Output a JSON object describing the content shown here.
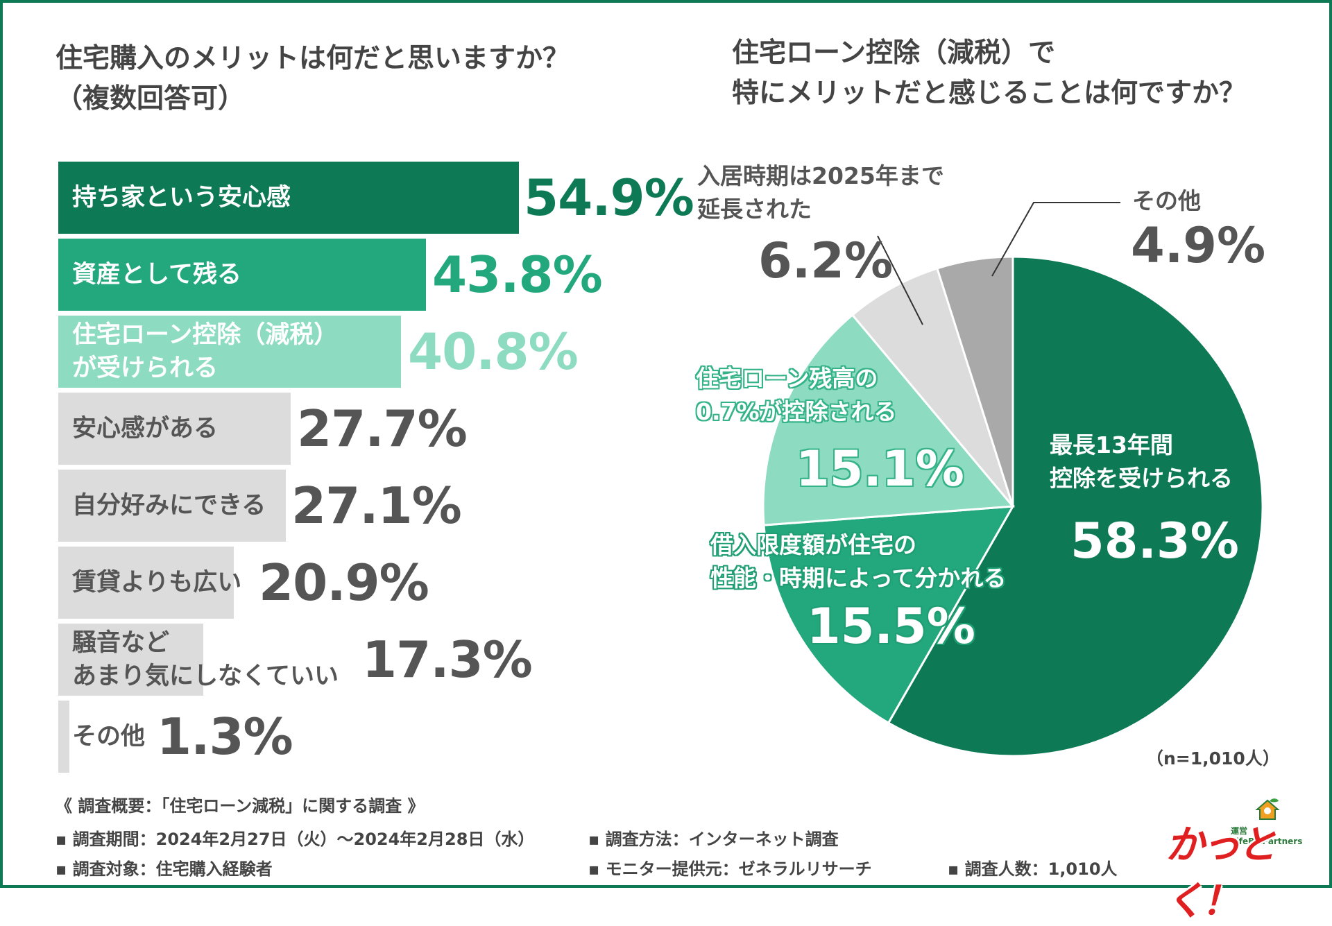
{
  "left_title": [
    "住宅購入のメリットは何だと思いますか？",
    "（複数回答可）"
  ],
  "right_title": [
    "住宅ローン控除（減税）で",
    "特にメリットだと感じることは何ですか？"
  ],
  "chart_data": [
    {
      "type": "bar",
      "orientation": "horizontal",
      "title": "住宅購入のメリットは何だと思いますか？（複数回答可）",
      "unit": "%",
      "categories": [
        [
          "持ち家という安心感"
        ],
        [
          "資産として残る"
        ],
        [
          "住宅ローン控除（減税）",
          "が受けられる"
        ],
        [
          "安心感がある"
        ],
        [
          "自分好みにできる"
        ],
        [
          "賃貸よりも広い"
        ],
        [
          "騒音など",
          "あまり気にしなくていい"
        ],
        [
          "その他"
        ]
      ],
      "values": [
        54.9,
        43.8,
        40.8,
        27.7,
        27.1,
        20.9,
        17.3,
        1.3
      ],
      "value_labels": [
        "54.9%",
        "43.8%",
        "40.8%",
        "27.7%",
        "27.1%",
        "20.9%",
        "17.3%",
        "1.3%"
      ]
    },
    {
      "type": "pie",
      "title": "住宅ローン控除（減税）で特にメリットだと感じることは何ですか？",
      "unit": "%",
      "slices": [
        {
          "label": [
            "最長13年間",
            "控除を受けられる"
          ],
          "value": 58.3,
          "value_label": "58.3%"
        },
        {
          "label": [
            "借入限度額が住宅の",
            "性能・時期によって分かれる"
          ],
          "value": 15.5,
          "value_label": "15.5%"
        },
        {
          "label": [
            "住宅ローン残高の",
            "0.7%が控除される"
          ],
          "value": 15.1,
          "value_label": "15.1%"
        },
        {
          "label": [
            "入居時期は2025年まで",
            "延長された"
          ],
          "value": 6.2,
          "value_label": "6.2%"
        },
        {
          "label": [
            "その他"
          ],
          "value": 4.9,
          "value_label": "4.9%"
        }
      ],
      "n_label": "（n=1,010人）"
    }
  ],
  "footer": {
    "summary": "《 調査概要：「住宅ローン減税」に関する調査 》",
    "period": "▪ 調査期間：2024年2月27日（火）〜2024年2月28日（水）",
    "method": "▪ 調査方法：インターネット調査",
    "target": "▪ 調査対象：住宅購入経験者",
    "provider": "▪ モニター提供元：ゼネラルリサーチ",
    "count": "▪ 調査人数：1,010人"
  },
  "logo": {
    "text": "かっとく！",
    "operator": "運営",
    "company": "LifeBizPartners"
  },
  "colors": {
    "border": "#0e7a55",
    "dark_green": "#0e7a55",
    "mid_green": "#22a87c",
    "light_green": "#8ddcc1",
    "gray": "#dcdcdc",
    "dark_gray": "#a9a9a9",
    "text_gray": "#555555"
  }
}
